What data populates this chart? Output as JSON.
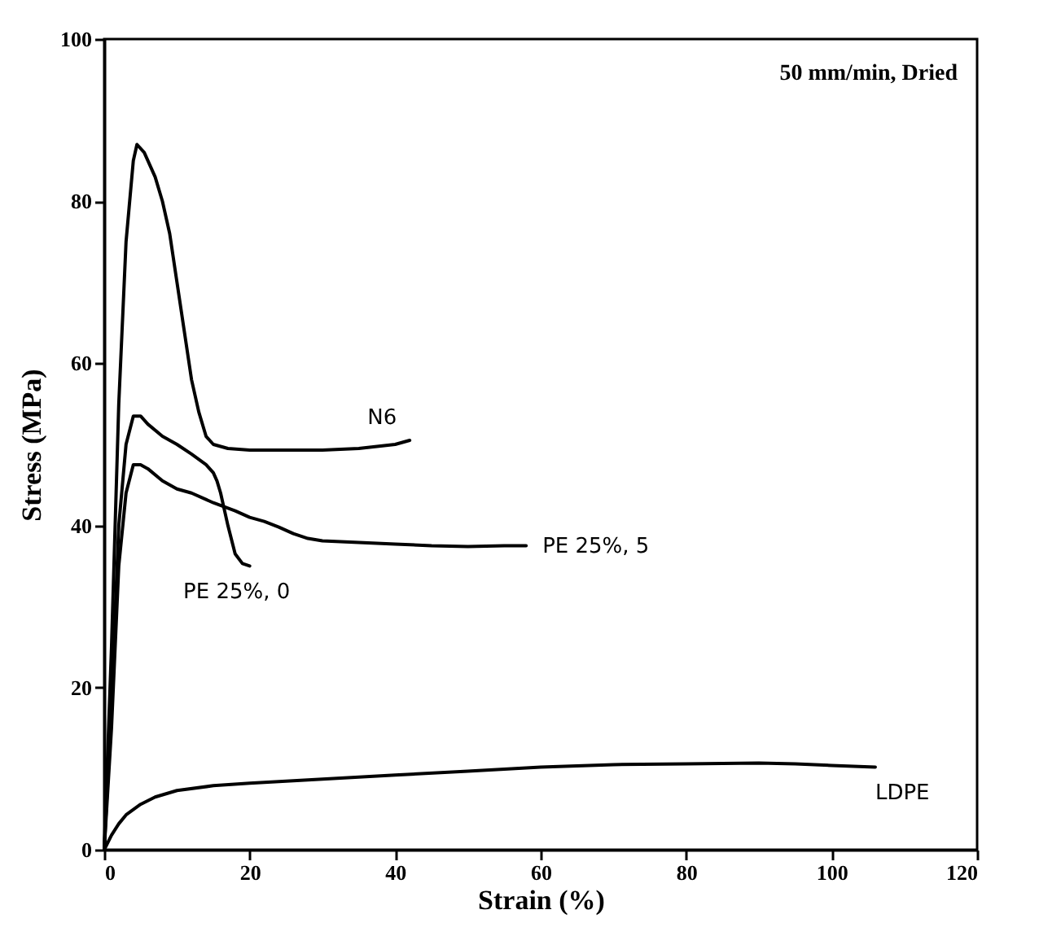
{
  "chart_data": {
    "type": "line",
    "xlabel": "Strain (%)",
    "ylabel": "Stress (MPa)",
    "xlim": [
      0,
      120
    ],
    "ylim": [
      0,
      100
    ],
    "xticks": [
      0,
      20,
      40,
      60,
      80,
      100,
      120
    ],
    "yticks": [
      0,
      20,
      40,
      60,
      80,
      100
    ],
    "grid": false,
    "legend": false,
    "marker": "none",
    "line_style": "solid",
    "annotations": [
      "50 mm/min, Dried"
    ],
    "series": [
      {
        "name": "N6",
        "color": "#000000",
        "x": [
          0,
          1,
          2,
          3,
          4,
          4.5,
          5.5,
          7,
          8,
          9,
          10,
          11,
          12,
          13,
          14,
          15,
          17,
          20,
          25,
          30,
          35,
          40,
          42
        ],
        "values": [
          0,
          25,
          55,
          75,
          85,
          87,
          86,
          83,
          80,
          76,
          70,
          64,
          58,
          54,
          51,
          50,
          49.5,
          49.3,
          49.3,
          49.3,
          49.5,
          50,
          50.5
        ]
      },
      {
        "name": "PE 25%, 5",
        "color": "#000000",
        "x": [
          0,
          1,
          2,
          3,
          4,
          5,
          6,
          8,
          10,
          12,
          15,
          18,
          20,
          22,
          24,
          26,
          28,
          30,
          35,
          40,
          45,
          50,
          55,
          58
        ],
        "values": [
          0,
          15,
          35,
          44,
          47.5,
          47.5,
          47,
          45.5,
          44.5,
          44,
          42.8,
          41.8,
          41,
          40.5,
          39.8,
          39,
          38.4,
          38.1,
          37.9,
          37.7,
          37.5,
          37.4,
          37.5,
          37.5
        ]
      },
      {
        "name": "PE 25%, 0",
        "color": "#000000",
        "x": [
          0,
          1,
          2,
          3,
          4,
          5,
          6,
          8,
          10,
          12,
          14,
          15,
          15.5,
          16,
          16.5,
          17,
          18,
          19,
          20
        ],
        "values": [
          0,
          18,
          40,
          50,
          53.5,
          53.5,
          52.5,
          51,
          50,
          48.8,
          47.5,
          46.5,
          45.5,
          44,
          42,
          40,
          36.5,
          35.3,
          35
        ]
      },
      {
        "name": "LDPE",
        "color": "#000000",
        "x": [
          0,
          1,
          2,
          3,
          5,
          7,
          10,
          15,
          20,
          30,
          40,
          50,
          60,
          70,
          80,
          90,
          95,
          100,
          106
        ],
        "values": [
          0,
          1.8,
          3.2,
          4.3,
          5.6,
          6.5,
          7.3,
          7.9,
          8.2,
          8.7,
          9.2,
          9.7,
          10.2,
          10.5,
          10.6,
          10.7,
          10.6,
          10.4,
          10.2
        ]
      }
    ]
  }
}
